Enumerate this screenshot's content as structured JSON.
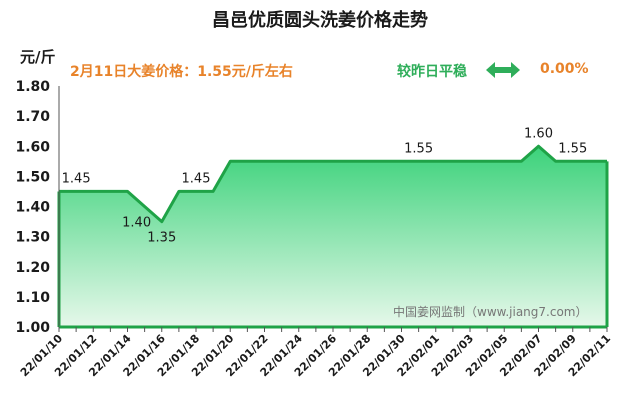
{
  "header": {
    "title": "昌邑优质圆头洗姜价格走势",
    "unit": "元/斤",
    "headline": "2月11日大姜价格：1.55元/斤左右",
    "status": "较昨日平稳",
    "change": "0.00%"
  },
  "watermark": "中国姜网监制（www.jiang7.com）",
  "colors": {
    "line": "#1fa347",
    "fill_top": "#3bd27a",
    "fill_bottom": "#e6f8ea",
    "accent": "#e8832a",
    "status": "#2fae5a"
  },
  "chart_data": {
    "type": "area",
    "ylim": [
      1.0,
      1.8
    ],
    "yticks": [
      "1.00",
      "1.10",
      "1.20",
      "1.30",
      "1.40",
      "1.50",
      "1.60",
      "1.70",
      "1.80"
    ],
    "xtick_labels": [
      "22/01/10",
      "22/01/12",
      "22/01/14",
      "22/01/16",
      "22/01/18",
      "22/01/20",
      "22/01/22",
      "22/01/24",
      "22/01/26",
      "22/01/28",
      "22/01/30",
      "22/02/01",
      "22/02/03",
      "22/02/05",
      "22/02/07",
      "22/02/09",
      "22/02/11"
    ],
    "x": [
      "22/01/10",
      "22/01/11",
      "22/01/12",
      "22/01/13",
      "22/01/14",
      "22/01/15",
      "22/01/16",
      "22/01/17",
      "22/01/18",
      "22/01/19",
      "22/01/20",
      "22/01/21",
      "22/01/22",
      "22/01/23",
      "22/01/24",
      "22/01/25",
      "22/01/26",
      "22/01/27",
      "22/01/28",
      "22/01/29",
      "22/01/30",
      "22/01/31",
      "22/02/01",
      "22/02/02",
      "22/02/03",
      "22/02/04",
      "22/02/05",
      "22/02/06",
      "22/02/07",
      "22/02/08",
      "22/02/09",
      "22/02/10",
      "22/02/11"
    ],
    "values": [
      1.45,
      1.45,
      1.45,
      1.45,
      1.45,
      1.4,
      1.35,
      1.45,
      1.45,
      1.45,
      1.55,
      1.55,
      1.55,
      1.55,
      1.55,
      1.55,
      1.55,
      1.55,
      1.55,
      1.55,
      1.55,
      1.55,
      1.55,
      1.55,
      1.55,
      1.55,
      1.55,
      1.55,
      1.6,
      1.55,
      1.55,
      1.55,
      1.55
    ],
    "data_labels": [
      {
        "x": "22/01/11",
        "y": 1.45,
        "text": "1.45"
      },
      {
        "x": "22/01/15",
        "y": 1.4,
        "text": "1.40"
      },
      {
        "x": "22/01/16",
        "y": 1.35,
        "text": "1.35"
      },
      {
        "x": "22/01/18",
        "y": 1.45,
        "text": "1.45"
      },
      {
        "x": "22/01/31",
        "y": 1.55,
        "text": "1.55"
      },
      {
        "x": "22/02/07",
        "y": 1.6,
        "text": "1.60"
      },
      {
        "x": "22/02/09",
        "y": 1.55,
        "text": "1.55"
      }
    ],
    "grid": false
  }
}
